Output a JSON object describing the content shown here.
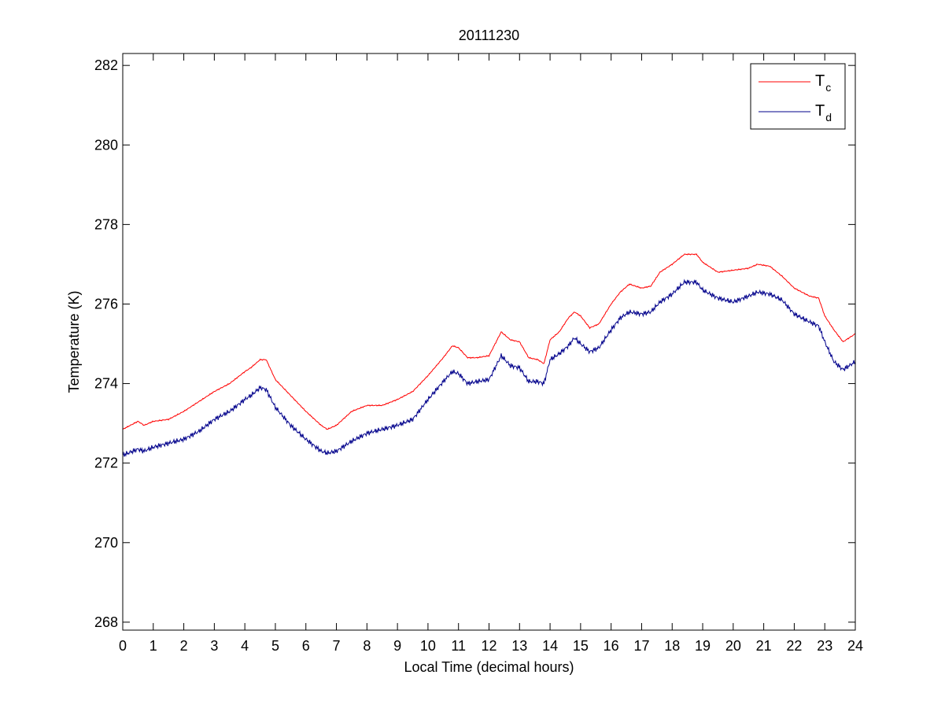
{
  "chart_data": {
    "type": "line",
    "title": "20111230",
    "xlabel": "Local Time (decimal hours)",
    "ylabel": "Temperature (K)",
    "xlim": [
      0,
      24
    ],
    "ylim": [
      267.8,
      282.3
    ],
    "xticks": [
      0,
      1,
      2,
      3,
      4,
      5,
      6,
      7,
      8,
      9,
      10,
      11,
      12,
      13,
      14,
      15,
      16,
      17,
      18,
      19,
      20,
      21,
      22,
      23,
      24
    ],
    "yticks": [
      268,
      270,
      272,
      274,
      276,
      278,
      280,
      282
    ],
    "grid": false,
    "legend_placement": "top-right",
    "series": [
      {
        "name": "T",
        "subscript": "c",
        "color": "#ff0000",
        "x": [
          0,
          0.5,
          0.7,
          1,
          1.5,
          2,
          2.5,
          3,
          3.5,
          4,
          4.2,
          4.5,
          4.7,
          5,
          5.5,
          6,
          6.5,
          6.7,
          7,
          7.5,
          8,
          8.5,
          9,
          9.5,
          10,
          10.5,
          10.8,
          11,
          11.3,
          11.6,
          12,
          12.4,
          12.7,
          13,
          13.3,
          13.6,
          13.8,
          14,
          14.3,
          14.6,
          14.8,
          15,
          15.3,
          15.6,
          16,
          16.3,
          16.6,
          17,
          17.3,
          17.6,
          18,
          18.4,
          18.8,
          19,
          19.5,
          20,
          20.5,
          20.8,
          21.2,
          21.6,
          22,
          22.5,
          22.8,
          23,
          23.3,
          23.6,
          24
        ],
        "values": [
          272.85,
          273.05,
          272.95,
          273.05,
          273.1,
          273.3,
          273.55,
          273.8,
          274.0,
          274.3,
          274.4,
          274.6,
          274.6,
          274.1,
          273.7,
          273.3,
          272.95,
          272.85,
          272.95,
          273.3,
          273.45,
          273.45,
          273.6,
          273.8,
          274.2,
          274.65,
          274.95,
          274.9,
          274.65,
          274.65,
          274.7,
          275.3,
          275.1,
          275.05,
          274.65,
          274.6,
          274.5,
          275.1,
          275.3,
          275.65,
          275.8,
          275.7,
          275.4,
          275.5,
          276.0,
          276.3,
          276.5,
          276.4,
          276.45,
          276.8,
          277.0,
          277.25,
          277.25,
          277.05,
          276.8,
          276.85,
          276.9,
          277.0,
          276.95,
          276.7,
          276.4,
          276.2,
          276.15,
          275.7,
          275.35,
          275.05,
          275.25
        ]
      },
      {
        "name": "T",
        "subscript": "d",
        "color": "#00008b",
        "x": [
          0,
          0.5,
          0.7,
          1,
          1.5,
          2,
          2.5,
          3,
          3.5,
          4,
          4.2,
          4.5,
          4.7,
          5,
          5.5,
          6,
          6.5,
          6.7,
          7,
          7.5,
          8,
          8.5,
          9,
          9.5,
          10,
          10.5,
          10.8,
          11,
          11.3,
          11.6,
          12,
          12.4,
          12.7,
          13,
          13.3,
          13.6,
          13.8,
          14,
          14.3,
          14.6,
          14.8,
          15,
          15.3,
          15.6,
          16,
          16.3,
          16.6,
          17,
          17.3,
          17.6,
          18,
          18.4,
          18.8,
          19,
          19.5,
          20,
          20.5,
          20.8,
          21.2,
          21.6,
          22,
          22.5,
          22.8,
          23,
          23.3,
          23.6,
          24
        ],
        "values": [
          272.2,
          272.35,
          272.3,
          272.4,
          272.5,
          272.6,
          272.8,
          273.1,
          273.3,
          273.6,
          273.7,
          273.9,
          273.85,
          273.4,
          272.95,
          272.6,
          272.3,
          272.25,
          272.3,
          272.55,
          272.75,
          272.85,
          272.95,
          273.1,
          273.6,
          274.05,
          274.3,
          274.25,
          274.0,
          274.05,
          274.1,
          274.7,
          274.45,
          274.4,
          274.05,
          274.05,
          274.0,
          274.6,
          274.75,
          274.95,
          275.15,
          275.0,
          274.8,
          274.9,
          275.35,
          275.65,
          275.8,
          275.75,
          275.8,
          276.05,
          276.25,
          276.55,
          276.55,
          276.35,
          276.15,
          276.05,
          276.2,
          276.3,
          276.25,
          276.1,
          275.75,
          275.55,
          275.45,
          275.05,
          274.55,
          274.35,
          274.55
        ]
      }
    ]
  }
}
